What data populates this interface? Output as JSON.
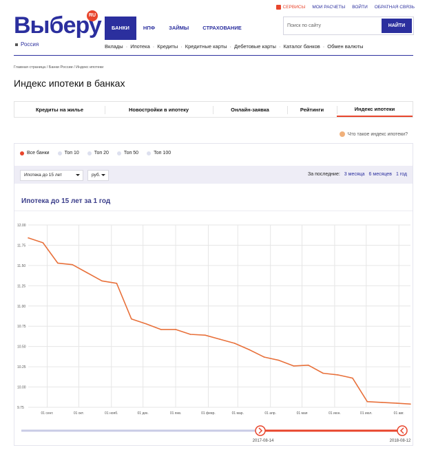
{
  "brand": {
    "logo": "Выберу",
    "badge": "RU"
  },
  "top_links": {
    "services": "СЕРВИСЫ",
    "calcs": "МОИ РАСЧЕТЫ",
    "login": "ВОЙТИ",
    "feedback": "ОБРАТНАЯ СВЯЗЬ"
  },
  "region": "Россия",
  "main_nav": [
    "БАНКИ",
    "НПФ",
    "ЗАЙМЫ",
    "СТРАХОВАНИЕ"
  ],
  "search": {
    "placeholder": "Поиск по сайту",
    "button": "НАЙТИ"
  },
  "sub_nav": [
    "Вклады",
    "Ипотека",
    "Кредиты",
    "Кредитные карты",
    "Дебетовые карты",
    "Каталог банков",
    "Обмен валюты"
  ],
  "breadcrumb": "Главная страница / Банки России / Индекс ипотеки",
  "page_title": "Индекс ипотеки в банках",
  "tabs": [
    "Кредиты на жилье",
    "Новостройки в ипотеку",
    "Онлайн-заявка",
    "Рейтинги",
    "Индекс ипотеки"
  ],
  "help_link": "Что такое индекс ипотеки?",
  "filters": [
    "Все банки",
    "Топ 10",
    "Топ 20",
    "Топ 50",
    "Топ 100"
  ],
  "selects": {
    "term": "Ипотека до 15 лет",
    "currency": "руб."
  },
  "period": {
    "label": "За последние:",
    "options": [
      "3 месяца",
      "6 месяцев",
      "1 год"
    ]
  },
  "chart_title": "Ипотека до 15 лет за 1 год",
  "range": {
    "start": "2017-08-14",
    "end": "2018-08-12"
  },
  "colors": {
    "brand": "#2b2f9e",
    "accent": "#e8452c",
    "line": "#e8703a"
  },
  "chart_data": {
    "type": "line",
    "title": "Ипотека до 15 лет за 1 год",
    "xlabel": "",
    "ylabel": "",
    "ylim": [
      9.75,
      12.0
    ],
    "yticks": [
      "12.00",
      "11.75",
      "11.50",
      "11.25",
      "11.00",
      "10.75",
      "10.50",
      "10.25",
      "10.00",
      "9.75"
    ],
    "xticks": [
      "01 сент.",
      "01 окт.",
      "01 нояб.",
      "01 дек.",
      "01 янв.",
      "01 февр.",
      "01 мар.",
      "01 апр.",
      "01 мая",
      "01 июн.",
      "01 июл.",
      "01 авг."
    ],
    "grid": true,
    "x": [
      "2017-08-14",
      "2017-08-28",
      "2017-09-11",
      "2017-09-25",
      "2017-10-09",
      "2017-10-23",
      "2017-11-06",
      "2017-11-20",
      "2017-12-04",
      "2017-12-18",
      "2018-01-01",
      "2018-01-15",
      "2018-01-29",
      "2018-02-12",
      "2018-02-26",
      "2018-03-12",
      "2018-03-26",
      "2018-04-09",
      "2018-04-23",
      "2018-05-07",
      "2018-05-21",
      "2018-06-04",
      "2018-06-18",
      "2018-07-02",
      "2018-07-16",
      "2018-07-30",
      "2018-08-12"
    ],
    "series": [
      {
        "values": [
          11.84,
          11.78,
          11.53,
          11.51,
          11.41,
          11.31,
          11.28,
          10.84,
          10.78,
          10.71,
          10.71,
          10.65,
          10.64,
          10.59,
          10.54,
          10.46,
          10.37,
          10.33,
          10.26,
          10.27,
          10.17,
          10.15,
          10.11,
          9.82,
          9.81,
          9.8,
          9.79
        ]
      }
    ]
  }
}
